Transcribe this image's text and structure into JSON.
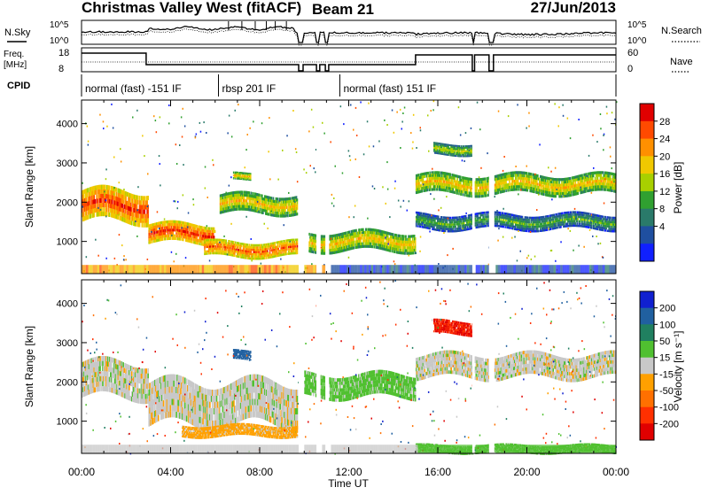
{
  "header": {
    "station": "Christmas Valley West (fitACF)",
    "beam": "Beam 21",
    "date": "27/Jun/2013"
  },
  "labels": {
    "nsky": "N.Sky",
    "nsearch": "N.Search",
    "freq": "Freq.",
    "freq_unit": "[MHz]",
    "nave": "Nave",
    "cpid": "CPID",
    "time_axis": "Time UT",
    "slant_range": "Slant Range [km]"
  },
  "noise_axis": {
    "left_ticks": [
      "10^5",
      "10^0"
    ],
    "right_ticks": [
      "10^5",
      "10^0"
    ]
  },
  "freq_axis": {
    "left_ticks": [
      "18",
      "8"
    ],
    "right_ticks": [
      "60",
      "0"
    ]
  },
  "cpid_segments": [
    {
      "start": 0.0,
      "end": 6.15,
      "label": "normal (fast) -151 IF"
    },
    {
      "start": 6.15,
      "end": 11.6,
      "label": "rbsp 201 IF"
    },
    {
      "start": 11.6,
      "end": 24.0,
      "label": "normal (fast) 151 IF"
    }
  ],
  "time_ticks": [
    "00:00",
    "04:00",
    "08:00",
    "12:00",
    "16:00",
    "20:00",
    "00:00"
  ],
  "range_ticks": [
    "1000",
    "2000",
    "3000",
    "4000"
  ],
  "power_scale": {
    "label": "Power [dB]",
    "ticks": [
      "28",
      "24",
      "20",
      "16",
      "12",
      "8",
      "4"
    ],
    "colors": [
      "#e00000",
      "#ff4a00",
      "#ff9000",
      "#f0c800",
      "#a8d000",
      "#30a030",
      "#2a7a6a",
      "#1f4fa0",
      "#1020ff"
    ]
  },
  "velocity_scale": {
    "label": "Velocity [m s⁻¹]",
    "ticks": [
      "200",
      "100",
      "50",
      "15",
      "-15",
      "-50",
      "-100",
      "-200"
    ],
    "colors": [
      "#1020d0",
      "#2060a0",
      "#208060",
      "#50c030",
      "#c8c8c8",
      "#ffa000",
      "#ff7000",
      "#ff3000",
      "#e00000"
    ]
  },
  "chart_data": [
    {
      "type": "heatmap",
      "title": "Christmas Valley West (fitACF) Beam 21",
      "xlabel": "Time UT",
      "ylabel": "Slant Range [km]",
      "xlim": [
        0,
        24
      ],
      "ylim": [
        180,
        4600
      ],
      "colorbar": {
        "label": "Power [dB]",
        "range": [
          0,
          30
        ]
      },
      "echo_bands": [
        {
          "t": [
            0.0,
            3.0
          ],
          "range": [
            1500,
            2300
          ],
          "value": 24
        },
        {
          "t": [
            3.0,
            6.0
          ],
          "range": [
            950,
            1450
          ],
          "value": 24
        },
        {
          "t": [
            6.2,
            9.7
          ],
          "range": [
            1700,
            2200
          ],
          "value": 16
        },
        {
          "t": [
            6.8,
            7.6
          ],
          "range": [
            2550,
            2750
          ],
          "value": 16
        },
        {
          "t": [
            5.5,
            9.7
          ],
          "range": [
            600,
            1000
          ],
          "value": 22
        },
        {
          "t": [
            10.2,
            15.0
          ],
          "range": [
            750,
            1250
          ],
          "value": 16
        },
        {
          "t": [
            15.0,
            24.0
          ],
          "range": [
            2200,
            2700
          ],
          "value": 16
        },
        {
          "t": [
            15.8,
            17.6
          ],
          "range": [
            3200,
            3500
          ],
          "value": 12
        },
        {
          "t": [
            15.0,
            24.0
          ],
          "range": [
            1300,
            1700
          ],
          "value": 8
        }
      ]
    },
    {
      "type": "heatmap",
      "xlabel": "Time UT",
      "ylabel": "Slant Range [km]",
      "xlim": [
        0,
        24
      ],
      "ylim": [
        180,
        4600
      ],
      "colorbar": {
        "label": "Velocity [m s⁻¹]",
        "range": [
          -250,
          250
        ]
      },
      "echo_bands": [
        {
          "t": [
            0.0,
            3.0
          ],
          "range": [
            1600,
            2500
          ],
          "value": 0
        },
        {
          "t": [
            3.0,
            9.7
          ],
          "range": [
            900,
            2000
          ],
          "value": 0
        },
        {
          "t": [
            4.5,
            9.7
          ],
          "range": [
            600,
            900
          ],
          "value": -30
        },
        {
          "t": [
            6.8,
            7.6
          ],
          "range": [
            2550,
            2800
          ],
          "value": 150
        },
        {
          "t": [
            10.0,
            15.0
          ],
          "range": [
            1600,
            2200
          ],
          "value": 30
        },
        {
          "t": [
            15.0,
            24.0
          ],
          "range": [
            2100,
            2700
          ],
          "value": 0
        },
        {
          "t": [
            15.8,
            17.6
          ],
          "range": [
            3200,
            3550
          ],
          "value": -200
        },
        {
          "t": [
            15.0,
            24.0
          ],
          "range": [
            180,
            400
          ],
          "value": 30
        }
      ]
    }
  ]
}
